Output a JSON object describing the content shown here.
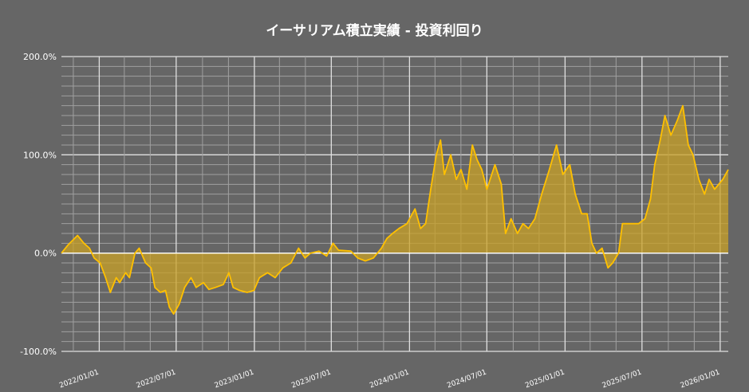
{
  "chart_data": {
    "type": "area",
    "title": "イーサリアム積立実績 - 投資利回り",
    "xlabel": "",
    "ylabel": "",
    "ylim": [
      -100,
      200
    ],
    "xlim": [
      "2021-10-04",
      "2026-01-20"
    ],
    "y_ticks": [
      "200.0%",
      "100.0%",
      "0.0%",
      "-100.0%"
    ],
    "y_tick_values": [
      200,
      100,
      0,
      -100
    ],
    "x_ticks": [
      "2022/01/01",
      "2022/07/01",
      "2023/01/01",
      "2023/07/01",
      "2024/01/01",
      "2024/07/01",
      "2025/01/01",
      "2025/07/01",
      "2026/01/01"
    ],
    "grid": true,
    "colors": {
      "line": "#FFC000",
      "fill": "#C9A227",
      "background": "#666666",
      "grid_major": "#E0E0E0",
      "grid_minor": "#A0A0A0"
    },
    "series": [
      {
        "x": [
          "2021-10-04",
          "2021-10-19",
          "2021-11-11",
          "2021-11-26",
          "2021-12-09",
          "2021-12-20",
          "2022-01-03",
          "2022-01-16",
          "2022-01-27",
          "2022-02-10",
          "2022-02-18",
          "2022-03-04",
          "2022-03-13",
          "2022-03-26",
          "2022-04-05",
          "2022-04-20",
          "2022-05-03",
          "2022-05-12",
          "2022-05-25",
          "2022-06-06",
          "2022-06-15",
          "2022-06-25",
          "2022-07-08",
          "2022-07-21",
          "2022-08-05",
          "2022-08-17",
          "2022-09-03",
          "2022-09-16",
          "2022-10-01",
          "2022-10-20",
          "2022-11-02",
          "2022-11-12",
          "2022-11-27",
          "2022-12-15",
          "2022-12-31",
          "2023-01-13",
          "2023-02-01",
          "2023-02-19",
          "2023-03-09",
          "2023-03-28",
          "2023-04-15",
          "2023-04-30",
          "2023-05-13",
          "2023-06-02",
          "2023-06-20",
          "2023-07-05",
          "2023-07-18",
          "2023-08-16",
          "2023-09-01",
          "2023-09-19",
          "2023-10-08",
          "2023-10-27",
          "2023-11-09",
          "2023-11-22",
          "2023-12-07",
          "2023-12-26",
          "2024-01-14",
          "2024-01-27",
          "2024-02-08",
          "2024-02-20",
          "2024-03-04",
          "2024-03-14",
          "2024-03-23",
          "2024-04-07",
          "2024-04-20",
          "2024-05-01",
          "2024-05-15",
          "2024-05-28",
          "2024-06-08",
          "2024-06-19",
          "2024-07-01",
          "2024-07-20",
          "2024-08-04",
          "2024-08-14",
          "2024-08-27",
          "2024-09-11",
          "2024-09-24",
          "2024-10-07",
          "2024-10-22",
          "2024-11-07",
          "2024-11-25",
          "2024-12-12",
          "2024-12-27",
          "2025-01-12",
          "2025-01-25",
          "2025-02-09",
          "2025-02-22",
          "2025-03-05",
          "2025-03-16",
          "2025-03-29",
          "2025-04-12",
          "2025-04-23",
          "2025-05-07",
          "2025-05-16",
          "2025-06-04",
          "2025-06-23",
          "2025-07-08",
          "2025-07-21",
          "2025-07-31",
          "2025-08-13",
          "2025-08-24",
          "2025-09-07",
          "2025-09-22",
          "2025-10-05",
          "2025-10-18",
          "2025-10-29",
          "2025-11-12",
          "2025-11-25",
          "2025-12-06",
          "2025-12-19",
          "2026-01-07",
          "2026-01-20"
        ],
        "y": [
          0,
          8,
          18,
          10,
          5,
          -5,
          -10,
          -25,
          -40,
          -25,
          -30,
          -20,
          -25,
          0,
          5,
          -10,
          -15,
          -35,
          -40,
          -38,
          -55,
          -62,
          -52,
          -35,
          -25,
          -35,
          -30,
          -37,
          -35,
          -32,
          -20,
          -35,
          -38,
          -40,
          -38,
          -25,
          -20,
          -25,
          -15,
          -10,
          5,
          -5,
          0,
          2,
          -3,
          10,
          3,
          2,
          -5,
          -8,
          -5,
          5,
          15,
          20,
          25,
          30,
          45,
          25,
          30,
          65,
          100,
          115,
          80,
          100,
          75,
          85,
          65,
          110,
          95,
          85,
          65,
          90,
          70,
          20,
          35,
          20,
          30,
          25,
          35,
          60,
          85,
          110,
          80,
          90,
          60,
          40,
          40,
          10,
          0,
          5,
          -15,
          -10,
          0,
          30,
          30,
          30,
          35,
          55,
          90,
          115,
          140,
          120,
          135,
          150,
          110,
          100,
          75,
          60,
          75,
          65,
          75,
          85
        ]
      }
    ]
  }
}
